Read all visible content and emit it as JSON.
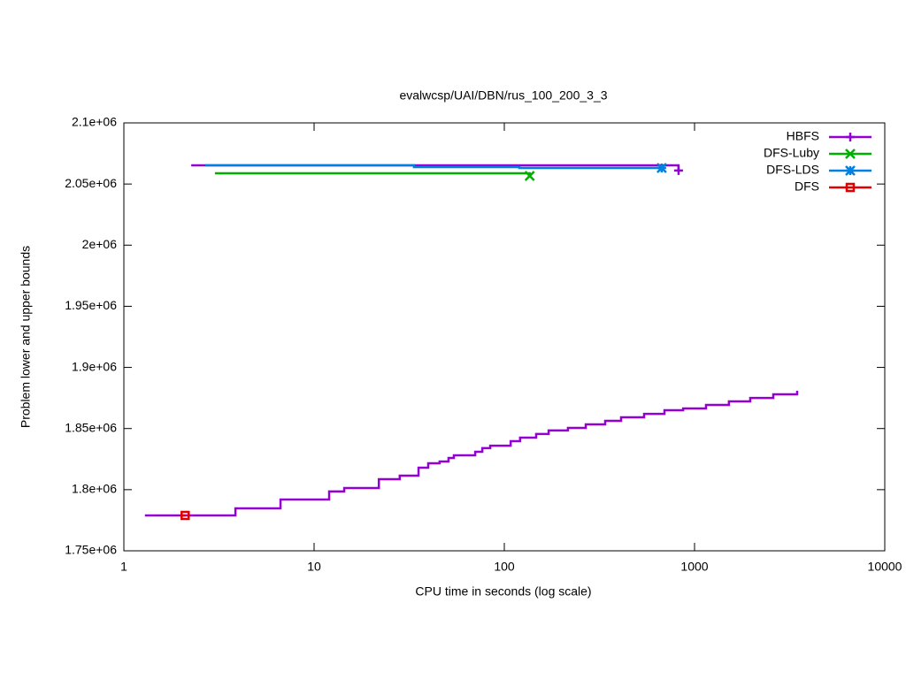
{
  "chart_data": {
    "type": "line",
    "step": true,
    "log_x": true,
    "title": "evalwcsp/UAI/DBN/rus_100_200_3_3",
    "x_label": "CPU time in seconds (log scale)",
    "y_label": "Problem lower and upper bounds",
    "xlim": [
      1,
      10000
    ],
    "xticks": [
      1,
      10,
      100,
      1000,
      10000
    ],
    "ylim": [
      1750000,
      2100000
    ],
    "yticks": [
      {
        "value": 1750000,
        "label": "1.75e+06"
      },
      {
        "value": 1800000,
        "label": "1.8e+06"
      },
      {
        "value": 1850000,
        "label": "1.85e+06"
      },
      {
        "value": 1900000,
        "label": "1.9e+06"
      },
      {
        "value": 1950000,
        "label": "1.95e+06"
      },
      {
        "value": 2000000,
        "label": "2e+06"
      },
      {
        "value": 2050000,
        "label": "2.05e+06"
      },
      {
        "value": 2100000,
        "label": "2.1e+06"
      }
    ],
    "legend": "top-right",
    "series": [
      {
        "name": "HBFS",
        "color": "#9400d3",
        "marker": "plus",
        "lines": [
          {
            "x": [
              2.26,
              824
            ],
            "values": [
              2065300,
              2061000
            ]
          },
          {
            "x": [
              1.29,
              3.86,
              6.66,
              12.0,
              14.4,
              21.9,
              28.2,
              35.4,
              39.8,
              45.7,
              50.9,
              54.3,
              70.3,
              76.6,
              84.3,
              108,
              121,
              147,
              171,
              216,
              268,
              339,
              411,
              543,
              695,
              871,
              1149,
              1516,
              1962,
              2594,
              3463
            ],
            "values": [
              1778900,
              1784700,
              1791900,
              1798500,
              1801300,
              1808600,
              1811500,
              1818000,
              1821600,
              1823000,
              1825900,
              1828100,
              1831000,
              1834000,
              1836000,
              1839700,
              1842600,
              1845500,
              1848400,
              1850500,
              1853400,
              1856300,
              1859200,
              1862000,
              1865000,
              1866400,
              1869300,
              1872200,
              1875000,
              1878000,
              1880900
            ]
          }
        ]
      },
      {
        "name": "DFS-Luby",
        "color": "#00b000",
        "marker": "cross",
        "lines": [
          {
            "x": [
              3.01,
              136
            ],
            "values": [
              2058800,
              2056600
            ]
          }
        ]
      },
      {
        "name": "DFS-LDS",
        "color": "#0080e0",
        "marker": "star",
        "lines": [
          {
            "x": [
              2.68,
              33.5,
              120,
              672
            ],
            "values": [
              2065300,
              2063800,
              2063100,
              2063100
            ]
          }
        ]
      },
      {
        "name": "DFS",
        "color": "#e00000",
        "marker": "square",
        "lines": [
          {
            "x": [
              2.0,
              2.1
            ],
            "values": [
              1778900,
              1778900
            ]
          }
        ]
      }
    ]
  }
}
